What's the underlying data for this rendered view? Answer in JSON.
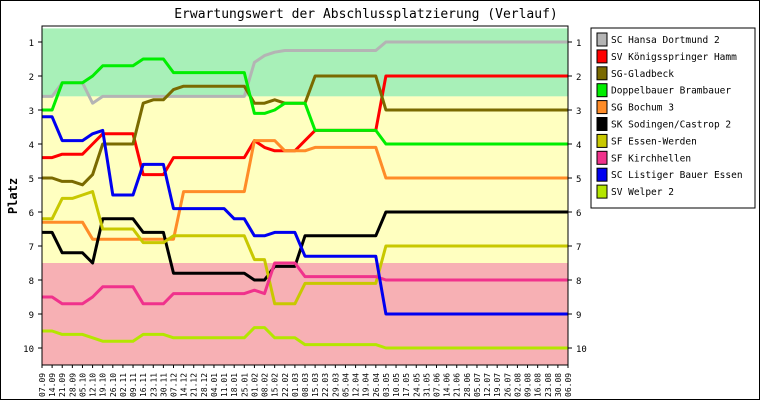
{
  "chart_data": {
    "type": "line",
    "title": "Erwartungswert der Abschlussplatzierung (Verlauf)",
    "ylabel": "Platz",
    "ylim": [
      1,
      10
    ],
    "y_inverted": true,
    "y_ticks": [
      1,
      2,
      3,
      4,
      5,
      6,
      7,
      8,
      9,
      10
    ],
    "x_tick_labels": [
      "07.09",
      "14.09",
      "21.09",
      "28.09",
      "05.10",
      "12.10",
      "19.10",
      "26.10",
      "02.11",
      "09.11",
      "16.11",
      "23.11",
      "30.11",
      "07.12",
      "14.12",
      "21.12",
      "28.12",
      "04.01",
      "11.01",
      "18.01",
      "25.01",
      "01.02",
      "08.02",
      "15.02",
      "22.02",
      "01.03",
      "08.03",
      "15.03",
      "22.03",
      "29.03",
      "05.04",
      "12.04",
      "19.04",
      "26.04",
      "03.05",
      "10.05",
      "17.05",
      "24.05",
      "31.05",
      "07.06",
      "14.06",
      "21.06",
      "28.06",
      "05.07",
      "12.07",
      "19.07",
      "26.07",
      "02.08",
      "09.08",
      "16.08",
      "23.08",
      "30.08",
      "06.09"
    ],
    "bands": [
      {
        "name": "promotion",
        "color": "#a8f0b8",
        "from": 0.6,
        "to": 2.6
      },
      {
        "name": "midfield",
        "color": "#ffffc0",
        "from": 2.6,
        "to": 7.5
      },
      {
        "name": "relegation",
        "color": "#f7b0b4",
        "from": 7.5,
        "to": 10.5
      }
    ],
    "legend_position": "right",
    "series": [
      {
        "name": "SC Hansa Dortmund 2",
        "color": "#b4b4b4",
        "values": [
          2.6,
          2.6,
          2.2,
          2.2,
          2.2,
          2.8,
          2.6,
          2.6,
          2.6,
          2.6,
          2.6,
          2.6,
          2.6,
          2.6,
          2.6,
          2.6,
          2.6,
          2.6,
          2.6,
          2.6,
          2.6,
          1.6,
          1.4,
          1.3,
          1.25,
          1.25,
          1.25,
          1.25,
          1.25,
          1.25,
          1.25,
          1.25,
          1.25,
          1.25,
          1.0,
          1.0,
          1.0,
          1.0,
          1.0,
          1.0,
          1.0,
          1.0,
          1.0,
          1.0,
          1.0,
          1.0,
          1.0,
          1.0,
          1.0,
          1.0,
          1.0,
          1.0,
          1.0
        ]
      },
      {
        "name": "SV Königsspringer Hamm",
        "color": "#ff0000",
        "values": [
          4.4,
          4.4,
          4.3,
          4.3,
          4.3,
          4.0,
          3.7,
          3.7,
          3.7,
          3.7,
          4.9,
          4.9,
          4.9,
          4.4,
          4.4,
          4.4,
          4.4,
          4.4,
          4.4,
          4.4,
          4.4,
          3.9,
          4.1,
          4.2,
          4.2,
          4.2,
          3.9,
          3.6,
          3.6,
          3.6,
          3.6,
          3.6,
          3.6,
          3.6,
          2.0,
          2.0,
          2.0,
          2.0,
          2.0,
          2.0,
          2.0,
          2.0,
          2.0,
          2.0,
          2.0,
          2.0,
          2.0,
          2.0,
          2.0,
          2.0,
          2.0,
          2.0,
          2.0
        ]
      },
      {
        "name": "SG-Gladbeck",
        "color": "#7a6a00",
        "values": [
          5.0,
          5.0,
          5.1,
          5.1,
          5.2,
          4.9,
          4.0,
          4.0,
          4.0,
          4.0,
          2.8,
          2.7,
          2.7,
          2.4,
          2.3,
          2.3,
          2.3,
          2.3,
          2.3,
          2.3,
          2.3,
          2.8,
          2.8,
          2.7,
          2.8,
          2.8,
          2.8,
          2.0,
          2.0,
          2.0,
          2.0,
          2.0,
          2.0,
          2.0,
          3.0,
          3.0,
          3.0,
          3.0,
          3.0,
          3.0,
          3.0,
          3.0,
          3.0,
          3.0,
          3.0,
          3.0,
          3.0,
          3.0,
          3.0,
          3.0,
          3.0,
          3.0,
          3.0
        ]
      },
      {
        "name": "Doppelbauer Brambauer",
        "color": "#00ee00",
        "values": [
          3.0,
          3.0,
          2.2,
          2.2,
          2.2,
          2.0,
          1.7,
          1.7,
          1.7,
          1.7,
          1.5,
          1.5,
          1.5,
          1.9,
          1.9,
          1.9,
          1.9,
          1.9,
          1.9,
          1.9,
          1.9,
          3.1,
          3.1,
          3.0,
          2.8,
          2.8,
          2.8,
          3.6,
          3.6,
          3.6,
          3.6,
          3.6,
          3.6,
          3.6,
          4.0,
          4.0,
          4.0,
          4.0,
          4.0,
          4.0,
          4.0,
          4.0,
          4.0,
          4.0,
          4.0,
          4.0,
          4.0,
          4.0,
          4.0,
          4.0,
          4.0,
          4.0,
          4.0
        ]
      },
      {
        "name": "SG Bochum 3",
        "color": "#ff8c28",
        "values": [
          6.3,
          6.3,
          6.3,
          6.3,
          6.3,
          6.8,
          6.8,
          6.8,
          6.8,
          6.8,
          6.8,
          6.8,
          6.8,
          6.8,
          5.4,
          5.4,
          5.4,
          5.4,
          5.4,
          5.4,
          5.4,
          3.9,
          3.9,
          3.9,
          4.2,
          4.2,
          4.2,
          4.1,
          4.1,
          4.1,
          4.1,
          4.1,
          4.1,
          4.1,
          5.0,
          5.0,
          5.0,
          5.0,
          5.0,
          5.0,
          5.0,
          5.0,
          5.0,
          5.0,
          5.0,
          5.0,
          5.0,
          5.0,
          5.0,
          5.0,
          5.0,
          5.0,
          5.0
        ]
      },
      {
        "name": "SK Sodingen/Castrop 2",
        "color": "#000000",
        "values": [
          6.6,
          6.6,
          7.2,
          7.2,
          7.2,
          7.5,
          6.2,
          6.2,
          6.2,
          6.2,
          6.6,
          6.6,
          6.6,
          7.8,
          7.8,
          7.8,
          7.8,
          7.8,
          7.8,
          7.8,
          7.8,
          8.0,
          8.0,
          7.6,
          7.6,
          7.6,
          6.7,
          6.7,
          6.7,
          6.7,
          6.7,
          6.7,
          6.7,
          6.7,
          6.0,
          6.0,
          6.0,
          6.0,
          6.0,
          6.0,
          6.0,
          6.0,
          6.0,
          6.0,
          6.0,
          6.0,
          6.0,
          6.0,
          6.0,
          6.0,
          6.0,
          6.0,
          6.0
        ]
      },
      {
        "name": "SF Essen-Werden",
        "color": "#c8c800",
        "values": [
          6.2,
          6.2,
          5.6,
          5.6,
          5.5,
          5.4,
          6.5,
          6.5,
          6.5,
          6.5,
          6.9,
          6.9,
          6.9,
          6.7,
          6.7,
          6.7,
          6.7,
          6.7,
          6.7,
          6.7,
          6.7,
          7.4,
          7.4,
          8.7,
          8.7,
          8.7,
          8.1,
          8.1,
          8.1,
          8.1,
          8.1,
          8.1,
          8.1,
          8.1,
          7.0,
          7.0,
          7.0,
          7.0,
          7.0,
          7.0,
          7.0,
          7.0,
          7.0,
          7.0,
          7.0,
          7.0,
          7.0,
          7.0,
          7.0,
          7.0,
          7.0,
          7.0,
          7.0
        ]
      },
      {
        "name": "SF Kirchhellen",
        "color": "#f0328c",
        "values": [
          8.5,
          8.5,
          8.7,
          8.7,
          8.7,
          8.5,
          8.2,
          8.2,
          8.2,
          8.2,
          8.7,
          8.7,
          8.7,
          8.4,
          8.4,
          8.4,
          8.4,
          8.4,
          8.4,
          8.4,
          8.4,
          8.3,
          8.4,
          7.5,
          7.5,
          7.5,
          7.9,
          7.9,
          7.9,
          7.9,
          7.9,
          7.9,
          7.9,
          7.9,
          8.0,
          8.0,
          8.0,
          8.0,
          8.0,
          8.0,
          8.0,
          8.0,
          8.0,
          8.0,
          8.0,
          8.0,
          8.0,
          8.0,
          8.0,
          8.0,
          8.0,
          8.0,
          8.0
        ]
      },
      {
        "name": "SC Listiger Bauer Essen",
        "color": "#0000f0",
        "values": [
          3.2,
          3.2,
          3.9,
          3.9,
          3.9,
          3.7,
          3.6,
          5.5,
          5.5,
          5.5,
          4.6,
          4.6,
          4.6,
          5.9,
          5.9,
          5.9,
          5.9,
          5.9,
          5.9,
          6.2,
          6.2,
          6.7,
          6.7,
          6.6,
          6.6,
          6.6,
          7.3,
          7.3,
          7.3,
          7.3,
          7.3,
          7.3,
          7.3,
          7.3,
          9.0,
          9.0,
          9.0,
          9.0,
          9.0,
          9.0,
          9.0,
          9.0,
          9.0,
          9.0,
          9.0,
          9.0,
          9.0,
          9.0,
          9.0,
          9.0,
          9.0,
          9.0,
          9.0
        ]
      },
      {
        "name": "SV Welper 2",
        "color": "#b4e600",
        "values": [
          9.5,
          9.5,
          9.6,
          9.6,
          9.6,
          9.7,
          9.8,
          9.8,
          9.8,
          9.8,
          9.6,
          9.6,
          9.6,
          9.7,
          9.7,
          9.7,
          9.7,
          9.7,
          9.7,
          9.7,
          9.7,
          9.4,
          9.4,
          9.7,
          9.7,
          9.7,
          9.9,
          9.9,
          9.9,
          9.9,
          9.9,
          9.9,
          9.9,
          9.9,
          10.0,
          10.0,
          10.0,
          10.0,
          10.0,
          10.0,
          10.0,
          10.0,
          10.0,
          10.0,
          10.0,
          10.0,
          10.0,
          10.0,
          10.0,
          10.0,
          10.0,
          10.0,
          10.0
        ]
      }
    ]
  }
}
